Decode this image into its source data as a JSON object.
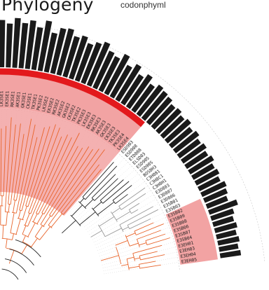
{
  "title": "Phylogeny",
  "subtitle": "codonphyml",
  "colors": {
    "highlight_band": "#f2a3a3",
    "red_arc": "#e3191c",
    "orange_branch": "#e8652c",
    "black_branch": "#222222",
    "grey_branch": "#9a9a9a",
    "bars": "#1a1a1a",
    "guide": "#c8c8c8"
  },
  "leaf_labels": [
    "PK3SE1",
    "LK3SE1",
    "EK3SE1",
    "RK3SE1",
    "AK3SE1",
    "GK3SE1",
    "CK3SE1",
    "TK3SE1",
    "PK3SE2",
    "LK3SE2",
    "EK3SE2",
    "RK3SE2",
    "AK3SE2",
    "GK3SE2",
    "CK3SE2",
    "TK3SE2",
    "PK3SE3",
    "LK3SE3",
    "EK3SE3",
    "RK3SE3",
    "AK3SE3",
    "GK3SE3",
    "CK3SE3",
    "TK3SE3",
    "PK3SE4",
    "LK3SE4",
    "ESD903",
    "ESD908",
    "ETD808",
    "ELSD03",
    "ESD905",
    "ESD90S",
    "BOS8H3",
    "C3H081",
    "C3H8C1",
    "C3H8H1",
    "E3D803",
    "E3D807",
    "E3D806",
    "E3SB01",
    "E3SB03",
    "E3SB02",
    "E3SB09",
    "E3SB08",
    "E3SB06",
    "E3SB07",
    "E3SB04",
    "E3EH01",
    "E3EH03",
    "E3EH04",
    "E3EH05"
  ],
  "highlighted_leaves": [
    0,
    1,
    2,
    3,
    4,
    5,
    6,
    7,
    8,
    9,
    10,
    11,
    12,
    13,
    14,
    15,
    16,
    17,
    18,
    19,
    20,
    21,
    22,
    23,
    24,
    25,
    41,
    42,
    43,
    44,
    45,
    46,
    47,
    48,
    49,
    50
  ],
  "bar_values": [
    0.72,
    0.85,
    0.78,
    0.9,
    0.81,
    0.88,
    0.76,
    0.92,
    0.7,
    0.83,
    0.86,
    0.74,
    0.8,
    0.69,
    0.77,
    0.84,
    0.71,
    0.66,
    0.79,
    0.62,
    0.73,
    0.58,
    0.68,
    0.55,
    0.64,
    0.6,
    0.57,
    0.5,
    0.53,
    0.47,
    0.52,
    0.44,
    0.49,
    0.42,
    0.46,
    0.4,
    0.45,
    0.38,
    0.41,
    0.36,
    0.43,
    0.39,
    0.34,
    0.5,
    0.37,
    0.32,
    0.35,
    0.3,
    0.33,
    0.28,
    0.31
  ]
}
